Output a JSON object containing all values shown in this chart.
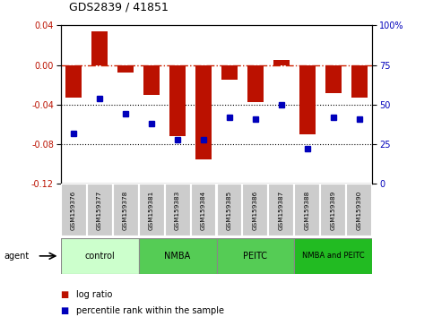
{
  "title": "GDS2839 / 41851",
  "samples": [
    "GSM159376",
    "GSM159377",
    "GSM159378",
    "GSM159381",
    "GSM159383",
    "GSM159384",
    "GSM159385",
    "GSM159386",
    "GSM159387",
    "GSM159388",
    "GSM159389",
    "GSM159390"
  ],
  "log_ratio": [
    -0.033,
    0.034,
    -0.008,
    -0.03,
    -0.072,
    -0.095,
    -0.015,
    -0.037,
    0.005,
    -0.07,
    -0.028,
    -0.033
  ],
  "percentile_rank": [
    32,
    54,
    44,
    38,
    28,
    28,
    42,
    41,
    50,
    22,
    42,
    41
  ],
  "groups": [
    {
      "label": "control",
      "start": 0,
      "end": 3,
      "color": "#ccffcc"
    },
    {
      "label": "NMBA",
      "start": 3,
      "end": 6,
      "color": "#55cc55"
    },
    {
      "label": "PEITC",
      "start": 6,
      "end": 9,
      "color": "#55cc55"
    },
    {
      "label": "NMBA and PEITC",
      "start": 9,
      "end": 12,
      "color": "#22bb22"
    }
  ],
  "ylim_left": [
    -0.12,
    0.04
  ],
  "ylim_right": [
    0,
    100
  ],
  "yticks_left": [
    -0.12,
    -0.08,
    -0.04,
    0.0,
    0.04
  ],
  "yticks_right": [
    0,
    25,
    50,
    75,
    100
  ],
  "bar_color": "#bb1100",
  "dot_color": "#0000bb",
  "hline_color": "#cc2200",
  "background_color": "#ffffff"
}
